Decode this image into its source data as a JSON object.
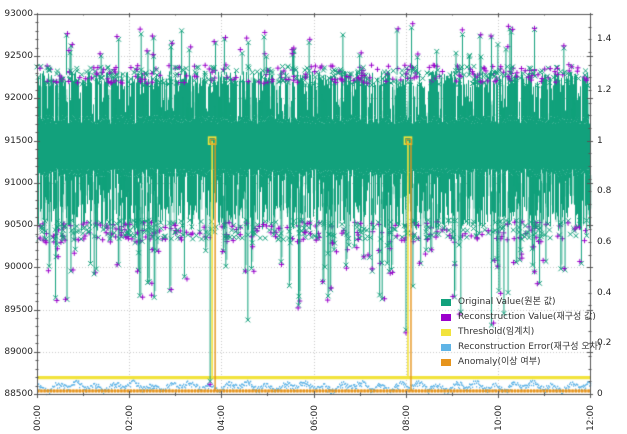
{
  "chart_data": {
    "type": "line",
    "title": "",
    "description": "Time-series anomaly detection plot: original vs reconstructed signal with threshold, reconstruction error and anomaly flags",
    "x_axis": {
      "tick_labels": [
        "00:00",
        "02:00",
        "04:00",
        "06:00",
        "08:00",
        "10:00",
        "12:00"
      ],
      "tick_hours": [
        0,
        2,
        4,
        6,
        8,
        10,
        12
      ],
      "range_hours": [
        0,
        12
      ],
      "minor_tick_every_hours": 0.3333
    },
    "y_axis_left": {
      "tick_labels": [
        "88500",
        "89000",
        "89500",
        "90000",
        "90500",
        "91000",
        "91500",
        "92000",
        "92500",
        "93000"
      ],
      "ticks": [
        88500,
        89000,
        89500,
        90000,
        90500,
        91000,
        91500,
        92000,
        92500,
        93000
      ],
      "range": [
        88500,
        93000
      ],
      "minor_step": 100
    },
    "y_axis_right": {
      "tick_labels": [
        "0",
        "0.2",
        "0.4",
        "0.6",
        "0.8",
        "1",
        "1.2",
        "1.4"
      ],
      "ticks": [
        0,
        0.2,
        0.4,
        0.6,
        0.8,
        1,
        1.2,
        1.4
      ],
      "range": [
        0,
        1.5
      ],
      "minor_step": 0.05
    },
    "grid": {
      "h_lines": [
        89000,
        89500,
        90000,
        90500,
        91000,
        91500,
        92000,
        92500
      ],
      "v_hours": [
        2,
        4,
        6,
        8,
        10
      ],
      "style": "dotted",
      "color": "#c9c9c9"
    },
    "legend": {
      "position": "center-right",
      "items": [
        {
          "label": "Original Value(원본 값)",
          "color": "#12a17c"
        },
        {
          "label": "Reconstruction Value(재구성 값)",
          "color": "#9b00cc"
        },
        {
          "label": "Threshold(임계치)",
          "color": "#f2e33c"
        },
        {
          "label": "Reconstruction Error(재구성 오차)",
          "color": "#5fb4e6"
        },
        {
          "label": "Anomaly(이상 여부)",
          "color": "#e6941c"
        }
      ]
    },
    "series": [
      {
        "name": "original_value",
        "axis": "left",
        "color": "#12a17c",
        "marker": "x",
        "band_core": [
          91120,
          91750
        ],
        "band_upper": [
          91800,
          92330
        ],
        "band_lower": [
          90430,
          91080
        ],
        "fringe_top": [
          92150,
          92380
        ],
        "fringe_bottom": [
          90330,
          90560
        ],
        "up_spikes": {
          "count": 42,
          "value_range": [
            92480,
            92860
          ]
        },
        "drops_mid": {
          "count": 80,
          "value_range": [
            89950,
            90420
          ]
        },
        "drops_deep": {
          "count": 24,
          "value_range": [
            89600,
            90000
          ]
        },
        "drops_rare": {
          "count": 5,
          "value_range": [
            89250,
            89600
          ]
        },
        "anomaly_drops": [
          {
            "hour": 3.8,
            "to": 88650
          },
          {
            "hour": 8.05,
            "to": 89260
          }
        ]
      },
      {
        "name": "reconstruction_value",
        "axis": "left",
        "color": "#9b00cc",
        "marker": "+",
        "follows": "original_value fringes"
      },
      {
        "name": "threshold",
        "axis": "right",
        "color": "#f2e33c",
        "base_value": 0.065,
        "spikes": [
          {
            "hour": 3.8,
            "value": 1.0
          },
          {
            "hour": 8.05,
            "value": 1.0
          }
        ]
      },
      {
        "name": "reconstruction_error",
        "axis": "right",
        "color": "#5fb4e6",
        "base_value": 0.032,
        "noise_amplitude": 0.015,
        "style": "dotted"
      },
      {
        "name": "anomaly_flag",
        "axis": "right",
        "color": "#e6941c",
        "marker": "square",
        "base_value": 0.012,
        "spikes": [
          {
            "hour": 3.8,
            "value": 1.0
          },
          {
            "hour": 8.05,
            "value": 1.0
          }
        ]
      }
    ],
    "axis_color": "#555555",
    "text_color": "#262626"
  }
}
